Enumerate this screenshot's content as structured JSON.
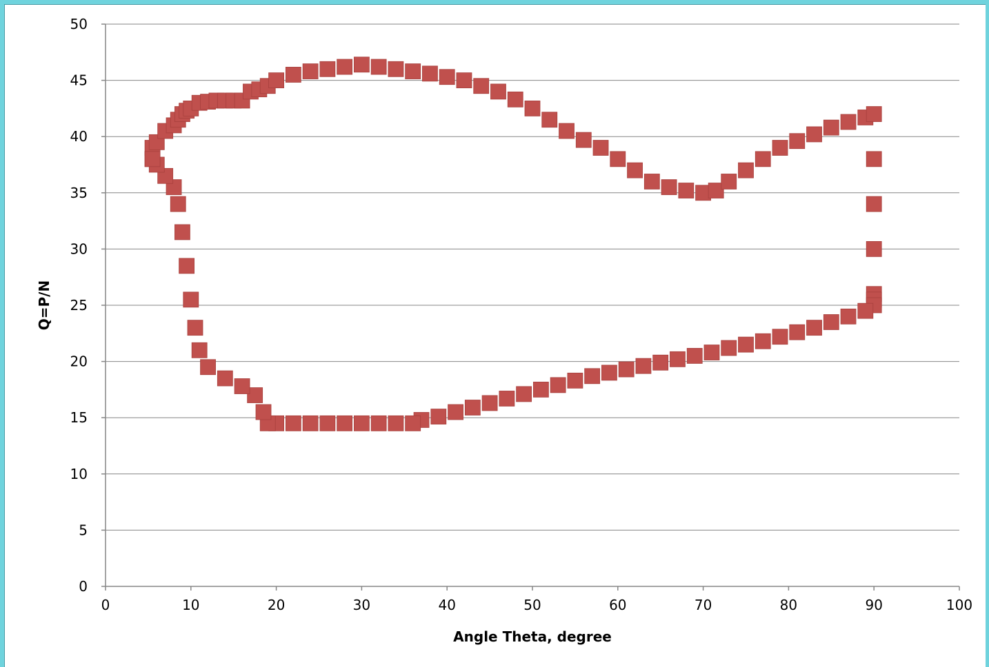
{
  "chart_data": {
    "type": "scatter",
    "title": "",
    "xlabel": "Angle Theta, degree",
    "ylabel": "Q=P/N",
    "xlim": [
      0,
      100
    ],
    "ylim": [
      0,
      50
    ],
    "x_ticks": [
      0,
      10,
      20,
      30,
      40,
      50,
      60,
      70,
      80,
      90,
      100
    ],
    "y_ticks": [
      0,
      5,
      10,
      15,
      20,
      25,
      30,
      35,
      40,
      45,
      50
    ],
    "grid": "horizontal",
    "legend": "none",
    "marker": "square",
    "colors": {
      "marker": "#c0504d",
      "grid": "#868686",
      "background": "#ffffff"
    },
    "series": [
      {
        "x": [
          5.5,
          5.5,
          6,
          7,
          8,
          8.5,
          9,
          9.5,
          10,
          11,
          12,
          13,
          14,
          15,
          16,
          17,
          18,
          19,
          20,
          22,
          24,
          26,
          28,
          30,
          32,
          34,
          36,
          38,
          40,
          42,
          44,
          46,
          48,
          50,
          52,
          54,
          56,
          58,
          60,
          62,
          64,
          66,
          68,
          70,
          71.5,
          73,
          75,
          77,
          79,
          81,
          83,
          85,
          87,
          89,
          90,
          90,
          90,
          90,
          90,
          90,
          90,
          89,
          87,
          85,
          83,
          81,
          79,
          77,
          75,
          73,
          71,
          69,
          67,
          65,
          63,
          61,
          59,
          57,
          55,
          53,
          51,
          49,
          47,
          45,
          43,
          41,
          39,
          37,
          36,
          34,
          32,
          30,
          28,
          26,
          24,
          22,
          20,
          19,
          18.5,
          17.5,
          16,
          14,
          12,
          11,
          10.5,
          10,
          9.5,
          9,
          8.5,
          8,
          7,
          6,
          5.5
        ],
        "y": [
          38,
          39,
          39.5,
          40.5,
          41,
          41.5,
          42,
          42.3,
          42.5,
          43,
          43.1,
          43.2,
          43.2,
          43.2,
          43.2,
          44,
          44.2,
          44.5,
          45,
          45.5,
          45.8,
          46,
          46.2,
          46.4,
          46.2,
          46,
          45.8,
          45.6,
          45.3,
          45,
          44.5,
          44,
          43.3,
          42.5,
          41.5,
          40.5,
          39.7,
          39,
          38,
          37,
          36,
          35.5,
          35.2,
          35,
          35.2,
          36,
          37,
          38,
          39,
          39.6,
          40.2,
          40.8,
          41.3,
          41.7,
          42,
          38,
          34,
          30,
          26,
          25.5,
          25,
          24.5,
          24,
          23.5,
          23,
          22.6,
          22.2,
          21.8,
          21.5,
          21.2,
          20.8,
          20.5,
          20.2,
          19.9,
          19.6,
          19.3,
          19,
          18.7,
          18.3,
          17.9,
          17.5,
          17.1,
          16.7,
          16.3,
          15.9,
          15.5,
          15.1,
          14.8,
          14.5,
          14.5,
          14.5,
          14.5,
          14.5,
          14.5,
          14.5,
          14.5,
          14.5,
          14.5,
          15.5,
          17,
          17.8,
          18.5,
          19.5,
          21,
          23,
          25.5,
          28.5,
          31.5,
          34,
          35.5,
          36.5,
          37.5,
          38
        ]
      }
    ]
  }
}
